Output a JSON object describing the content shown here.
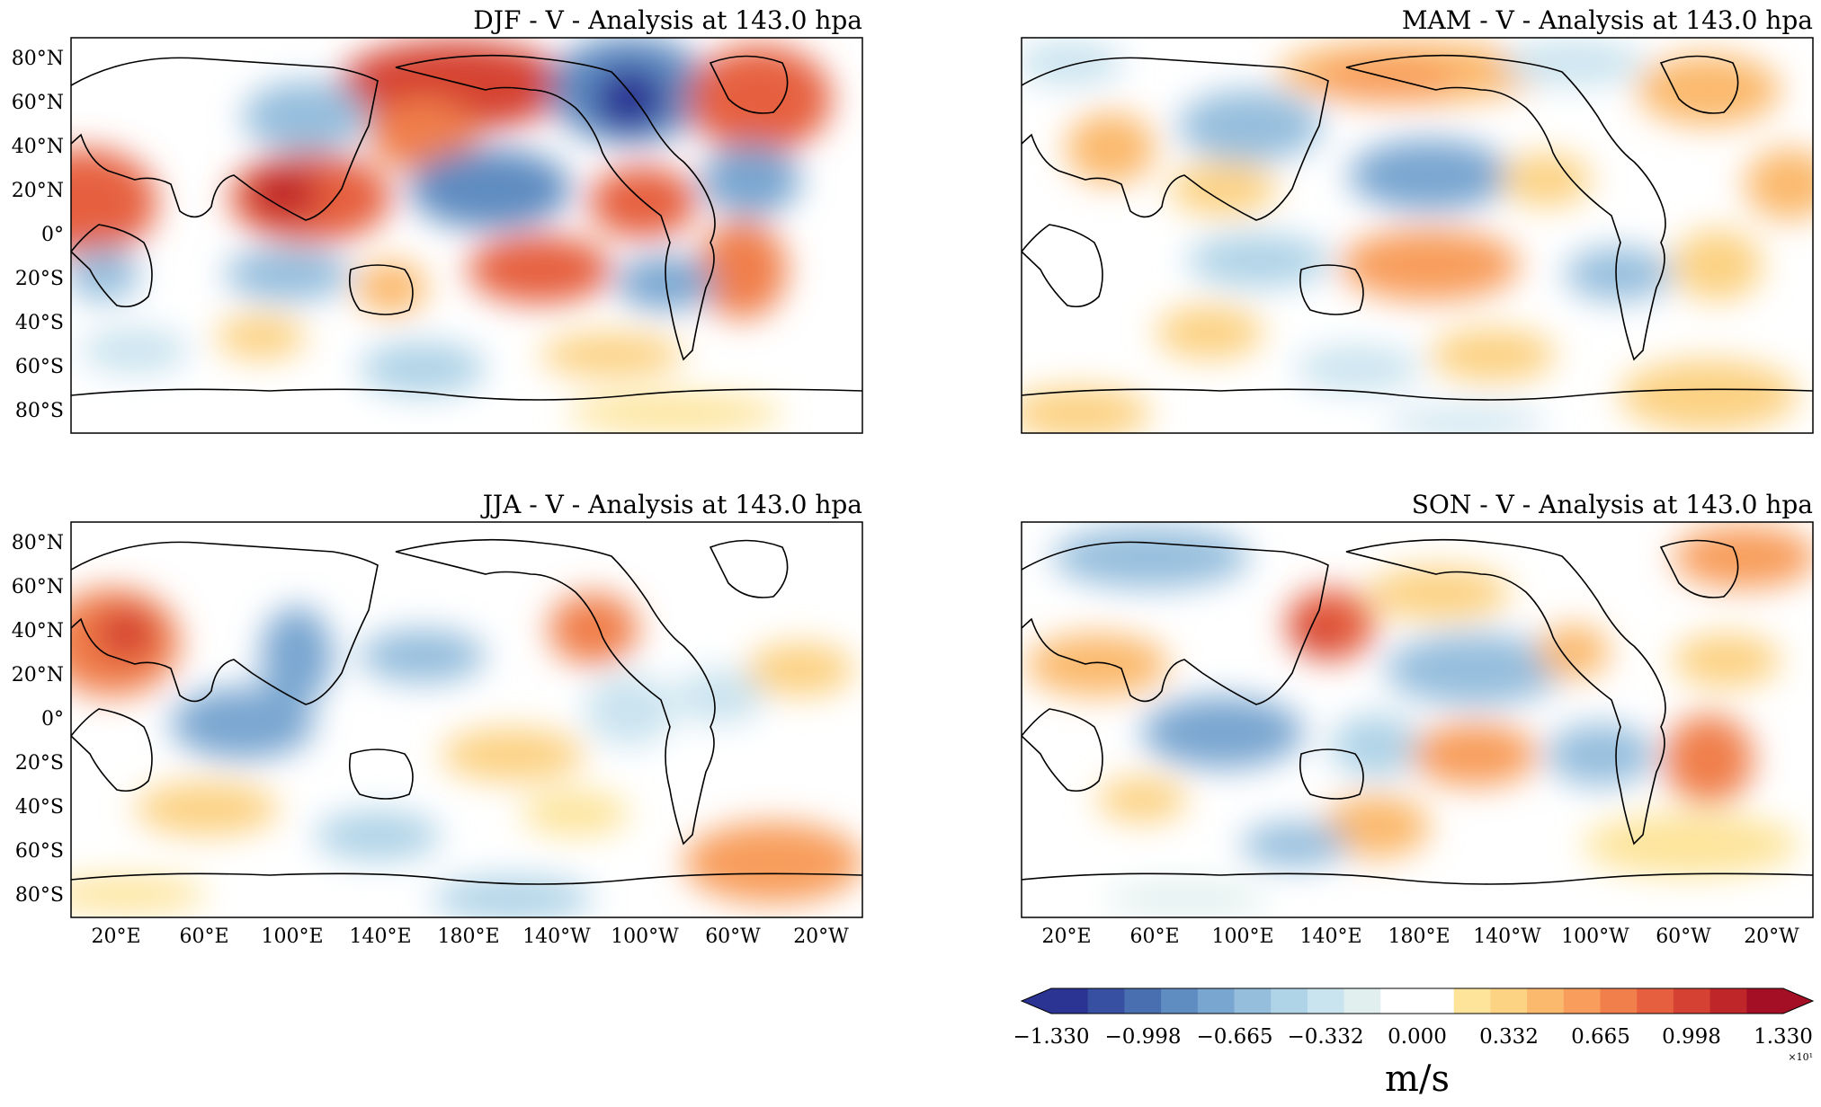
{
  "figure": {
    "panels": [
      {
        "id": "djf",
        "title": "DJF - V - Analysis at 143.0 hpa"
      },
      {
        "id": "mam",
        "title": "MAM - V - Analysis at 143.0 hpa"
      },
      {
        "id": "jja",
        "title": "JJA - V - Analysis at 143.0 hpa"
      },
      {
        "id": "son",
        "title": "SON - V - Analysis at 143.0 hpa"
      }
    ],
    "lat_ticks": [
      "80°N",
      "60°N",
      "40°N",
      "20°N",
      "0°",
      "20°S",
      "40°S",
      "60°S",
      "80°S"
    ],
    "lon_ticks": [
      "20°E",
      "60°E",
      "100°E",
      "140°E",
      "180°E",
      "140°W",
      "100°W",
      "60°W",
      "20°W"
    ],
    "colorbar": {
      "ticks": [
        "−1.330",
        "−0.998",
        "−0.665",
        "−0.332",
        "0.000",
        "0.332",
        "0.665",
        "0.998",
        "1.330"
      ],
      "scale_label": "×10¹",
      "unit_label": "m/s",
      "range": [
        -13.3,
        13.3
      ],
      "colors": [
        "#2b3393",
        "#3850a2",
        "#4a6fb0",
        "#5f8cc1",
        "#79a6d0",
        "#95bedd",
        "#afd3e7",
        "#c9e3ef",
        "#e1f0ef",
        "#ffffff",
        "#ffffff",
        "#fde49a",
        "#fcd283",
        "#fbb96d",
        "#f89d5b",
        "#f07f4c",
        "#e6603f",
        "#d54233",
        "#bf2629",
        "#a50f26"
      ],
      "color_low": "#2b3393",
      "color_high": "#a50f26"
    }
  },
  "chart_data": [
    {
      "type": "heatmap",
      "title": "DJF - V - Analysis at 143.0 hpa",
      "variable": "V",
      "unit": "m/s",
      "features": [
        {
          "lon": 15,
          "lat": 18,
          "value": 7.5
        },
        {
          "lon": 110,
          "lat": 20,
          "value": 9
        },
        {
          "lon": 165,
          "lat": 62,
          "value": 10
        },
        {
          "lon": -95,
          "lat": 65,
          "value": -13
        },
        {
          "lon": -40,
          "lat": 55,
          "value": 9
        },
        {
          "lon": 50,
          "lat": 52,
          "value": -7
        },
        {
          "lon": -150,
          "lat": 25,
          "value": -7
        },
        {
          "lon": -80,
          "lat": 22,
          "value": 7
        },
        {
          "lon": -45,
          "lat": 25,
          "value": -6
        },
        {
          "lon": -160,
          "lat": -15,
          "value": 7
        },
        {
          "lon": -55,
          "lat": -15,
          "value": 8
        },
        {
          "lon": -90,
          "lat": -22,
          "value": -6
        }
      ]
    },
    {
      "type": "heatmap",
      "title": "MAM - V - Analysis at 143.0 hpa",
      "variable": "V",
      "unit": "m/s",
      "features": [
        {
          "lon": 160,
          "lat": 70,
          "value": 6
        },
        {
          "lon": -150,
          "lat": 25,
          "value": -6
        },
        {
          "lon": -30,
          "lat": 60,
          "value": 5
        },
        {
          "lon": -155,
          "lat": -20,
          "value": 6
        },
        {
          "lon": 85,
          "lat": 45,
          "value": -5
        },
        {
          "lon": -20,
          "lat": 18,
          "value": 5
        }
      ]
    },
    {
      "type": "heatmap",
      "title": "JJA - V - Analysis at 143.0 hpa",
      "variable": "V",
      "unit": "m/s",
      "features": [
        {
          "lon": 40,
          "lat": 32,
          "value": 9
        },
        {
          "lon": 80,
          "lat": 0,
          "value": -7
        },
        {
          "lon": 110,
          "lat": 30,
          "value": -6
        },
        {
          "lon": 165,
          "lat": 30,
          "value": -5
        },
        {
          "lon": -130,
          "lat": 42,
          "value": 7
        },
        {
          "lon": -20,
          "lat": -70,
          "value": 6
        }
      ]
    },
    {
      "type": "heatmap",
      "title": "SON - V - Analysis at 143.0 hpa",
      "variable": "V",
      "unit": "m/s",
      "features": [
        {
          "lon": 150,
          "lat": 40,
          "value": 7
        },
        {
          "lon": -40,
          "lat": 70,
          "value": 7
        },
        {
          "lon": -50,
          "lat": -15,
          "value": 7
        },
        {
          "lon": -140,
          "lat": -20,
          "value": 6
        },
        {
          "lon": 100,
          "lat": -5,
          "value": -6
        },
        {
          "lon": 45,
          "lat": 65,
          "value": -5
        }
      ]
    }
  ]
}
